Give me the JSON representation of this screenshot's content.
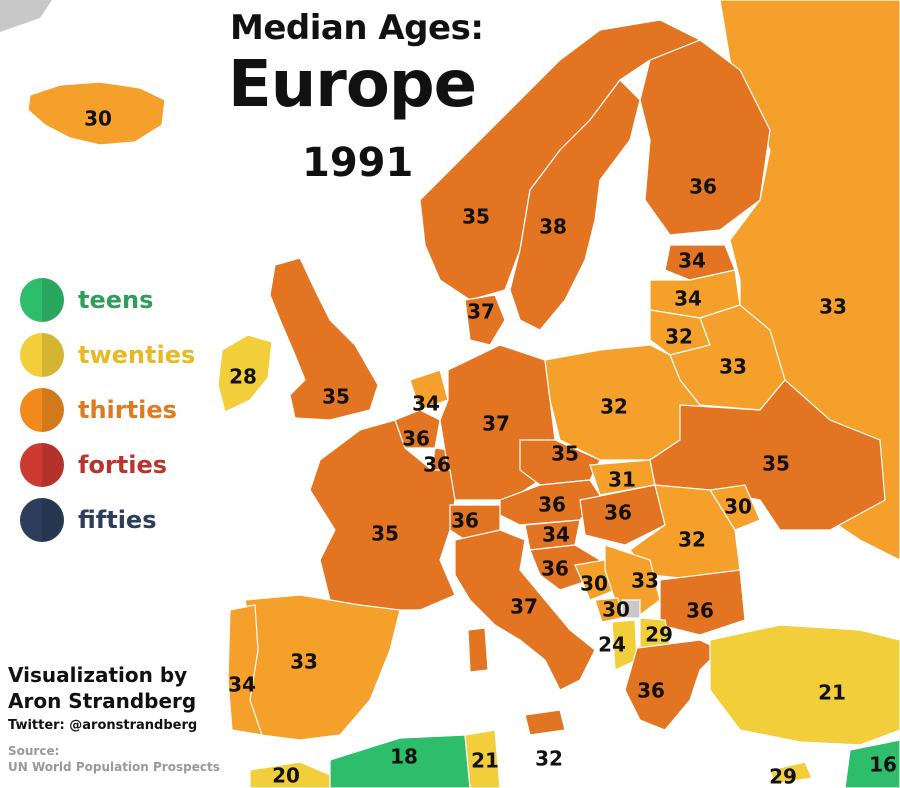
{
  "title": {
    "line1": "Median Ages:",
    "line2": "Europe",
    "line3": "1991"
  },
  "legend": [
    {
      "label": "teens",
      "color": "#2ebd6b",
      "text_color": "#2e9e5a"
    },
    {
      "label": "twenties",
      "color": "#f2cf3a",
      "text_color": "#e8b923"
    },
    {
      "label": "thirties",
      "color": "#f08a1d",
      "text_color": "#e07a1e"
    },
    {
      "label": "forties",
      "color": "#cc3a32",
      "text_color": "#b8342c"
    },
    {
      "label": "fifties",
      "color": "#2c3e5c",
      "text_color": "#2c3e5c"
    }
  ],
  "credit": {
    "line1": "Visualization by",
    "line2": "Aron Strandberg",
    "twitter": "Twitter: @aronstrandberg",
    "source_label": "Source:",
    "source": "UN World Population Prospects"
  },
  "colors": {
    "teens": "#2ebd6b",
    "twenties": "#f2cf3a",
    "thirties_light": "#f5a02a",
    "thirties_dark": "#e37422",
    "no_data": "#c8c8c8",
    "sea": "#ffffff"
  },
  "regions": [
    {
      "name": "Iceland",
      "age": "30",
      "band": "thirties_light"
    },
    {
      "name": "Ireland",
      "age": "28",
      "band": "twenties"
    },
    {
      "name": "United Kingdom",
      "age": "35",
      "band": "thirties_dark"
    },
    {
      "name": "Norway",
      "age": "35",
      "band": "thirties_dark"
    },
    {
      "name": "Sweden",
      "age": "38",
      "band": "thirties_dark"
    },
    {
      "name": "Finland",
      "age": "36",
      "band": "thirties_dark"
    },
    {
      "name": "Russia",
      "age": "33",
      "band": "thirties_light"
    },
    {
      "name": "Estonia",
      "age": "34",
      "band": "thirties_dark"
    },
    {
      "name": "Latvia",
      "age": "34",
      "band": "thirties_light"
    },
    {
      "name": "Lithuania",
      "age": "32",
      "band": "thirties_light"
    },
    {
      "name": "Belarus",
      "age": "33",
      "band": "thirties_light"
    },
    {
      "name": "Denmark",
      "age": "37",
      "band": "thirties_dark"
    },
    {
      "name": "Netherlands",
      "age": "34",
      "band": "thirties_light"
    },
    {
      "name": "Belgium",
      "age": "36",
      "band": "thirties_dark"
    },
    {
      "name": "Luxembourg",
      "age": "36",
      "band": "thirties_dark"
    },
    {
      "name": "Germany",
      "age": "37",
      "band": "thirties_dark"
    },
    {
      "name": "Poland",
      "age": "32",
      "band": "thirties_light"
    },
    {
      "name": "Czechia",
      "age": "35",
      "band": "thirties_dark"
    },
    {
      "name": "Slovakia",
      "age": "31",
      "band": "thirties_light"
    },
    {
      "name": "Ukraine",
      "age": "35",
      "band": "thirties_dark"
    },
    {
      "name": "Moldova",
      "age": "30",
      "band": "thirties_light"
    },
    {
      "name": "Austria",
      "age": "36",
      "band": "thirties_dark"
    },
    {
      "name": "Hungary",
      "age": "36",
      "band": "thirties_dark"
    },
    {
      "name": "Romania",
      "age": "32",
      "band": "thirties_light"
    },
    {
      "name": "France",
      "age": "35",
      "band": "thirties_dark"
    },
    {
      "name": "Switzerland",
      "age": "36",
      "band": "thirties_dark"
    },
    {
      "name": "Slovenia",
      "age": "34",
      "band": "thirties_dark"
    },
    {
      "name": "Croatia",
      "age": "36",
      "band": "thirties_dark"
    },
    {
      "name": "Bosnia and Herzegovina",
      "age": "30",
      "band": "thirties_light"
    },
    {
      "name": "Serbia",
      "age": "33",
      "band": "thirties_light"
    },
    {
      "name": "Montenegro",
      "age": "30",
      "band": "thirties_light"
    },
    {
      "name": "Bulgaria",
      "age": "36",
      "band": "thirties_dark"
    },
    {
      "name": "North Macedonia",
      "age": "29",
      "band": "twenties"
    },
    {
      "name": "Albania",
      "age": "24",
      "band": "twenties"
    },
    {
      "name": "Italy",
      "age": "37",
      "band": "thirties_dark"
    },
    {
      "name": "Greece",
      "age": "36",
      "band": "thirties_dark"
    },
    {
      "name": "Spain",
      "age": "33",
      "band": "thirties_light"
    },
    {
      "name": "Portugal",
      "age": "34",
      "band": "thirties_light"
    },
    {
      "name": "Turkey",
      "age": "21",
      "band": "twenties"
    },
    {
      "name": "Morocco",
      "age": "20",
      "band": "twenties"
    },
    {
      "name": "Algeria",
      "age": "18",
      "band": "teens"
    },
    {
      "name": "Tunisia",
      "age": "21",
      "band": "twenties"
    },
    {
      "name": "Malta",
      "age": "32",
      "band": "thirties_light"
    },
    {
      "name": "Cyprus",
      "age": "29",
      "band": "twenties"
    },
    {
      "name": "Syria",
      "age": "16",
      "band": "teens"
    }
  ]
}
